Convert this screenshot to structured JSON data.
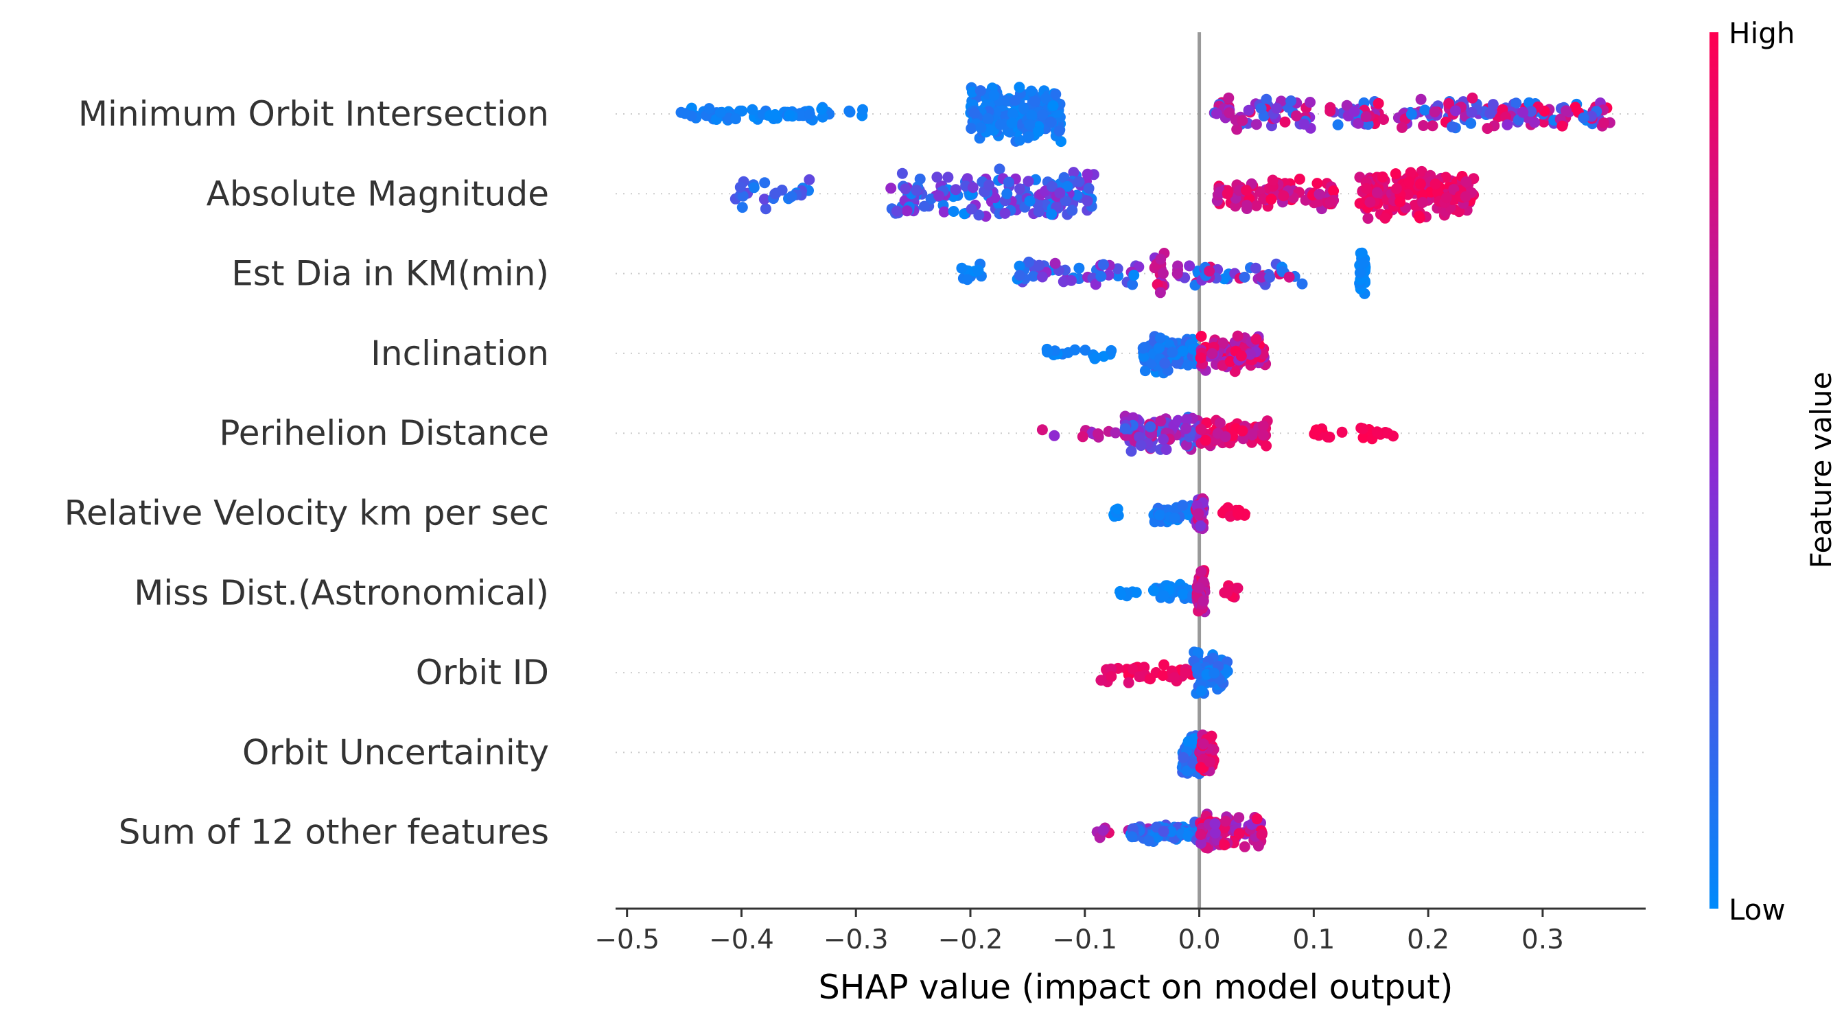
{
  "chart_data": {
    "type": "scatter",
    "subtype": "shap-beeswarm",
    "title": "",
    "xlabel": "SHAP value (impact on model output)",
    "ylabel": "",
    "xlim": [
      -0.51,
      0.39
    ],
    "x_ticks": [
      -0.5,
      -0.4,
      -0.3,
      -0.2,
      -0.1,
      0.0,
      0.1,
      0.2,
      0.3
    ],
    "x_tick_labels": [
      "−0.5",
      "−0.4",
      "−0.3",
      "−0.2",
      "−0.1",
      "0.0",
      "0.1",
      "0.2",
      "0.3"
    ],
    "zero_line": 0.0,
    "features": [
      {
        "name": "Minimum Orbit Intersection",
        "clusters": [
          {
            "x0": -0.46,
            "x1": -0.29,
            "n": 70,
            "spread": 0.25,
            "c0": 0.0,
            "c1": 0.1
          },
          {
            "x0": -0.2,
            "x1": -0.12,
            "n": 190,
            "spread": 1.0,
            "c0": 0.0,
            "c1": 0.15
          },
          {
            "x0": 0.01,
            "x1": 0.1,
            "n": 55,
            "spread": 0.55,
            "c0": 0.15,
            "c1": 0.95
          },
          {
            "x0": 0.11,
            "x1": 0.36,
            "n": 160,
            "spread": 0.55,
            "c0": 0.05,
            "c1": 1.0
          }
        ]
      },
      {
        "name": "Absolute Magnitude",
        "clusters": [
          {
            "x0": -0.41,
            "x1": -0.34,
            "n": 25,
            "spread": 0.55,
            "c0": 0.0,
            "c1": 0.4
          },
          {
            "x0": -0.27,
            "x1": -0.09,
            "n": 170,
            "spread": 0.85,
            "c0": 0.0,
            "c1": 0.55
          },
          {
            "x0": 0.015,
            "x1": 0.12,
            "n": 90,
            "spread": 0.55,
            "c0": 0.65,
            "c1": 1.0
          },
          {
            "x0": 0.14,
            "x1": 0.24,
            "n": 170,
            "spread": 0.9,
            "c0": 0.75,
            "c1": 1.0
          }
        ]
      },
      {
        "name": "Est Dia in KM(min)",
        "clusters": [
          {
            "x0": -0.21,
            "x1": -0.19,
            "n": 10,
            "spread": 0.35,
            "c0": 0.0,
            "c1": 0.1
          },
          {
            "x0": -0.16,
            "x1": -0.05,
            "n": 45,
            "spread": 0.45,
            "c0": 0.0,
            "c1": 0.6
          },
          {
            "x0": -0.04,
            "x1": -0.03,
            "n": 18,
            "spread": 0.7,
            "c0": 0.4,
            "c1": 0.95
          },
          {
            "x0": -0.02,
            "x1": 0.09,
            "n": 45,
            "spread": 0.45,
            "c0": 0.0,
            "c1": 0.9
          },
          {
            "x0": 0.14,
            "x1": 0.145,
            "n": 35,
            "spread": 0.95,
            "c0": 0.0,
            "c1": 0.05
          }
        ]
      },
      {
        "name": "Inclination",
        "clusters": [
          {
            "x0": -0.135,
            "x1": -0.075,
            "n": 15,
            "spread": 0.25,
            "c0": 0.0,
            "c1": 0.1
          },
          {
            "x0": -0.05,
            "x1": 0.0,
            "n": 110,
            "spread": 0.7,
            "c0": 0.0,
            "c1": 0.2
          },
          {
            "x0": 0.0,
            "x1": 0.06,
            "n": 95,
            "spread": 0.7,
            "c0": 0.5,
            "c1": 1.0
          }
        ]
      },
      {
        "name": "Perihelion Distance",
        "clusters": [
          {
            "x0": -0.14,
            "x1": -0.06,
            "n": 12,
            "spread": 0.15,
            "c0": 0.5,
            "c1": 0.85
          },
          {
            "x0": -0.065,
            "x1": 0.0,
            "n": 110,
            "spread": 0.65,
            "c0": 0.15,
            "c1": 0.8
          },
          {
            "x0": 0.0,
            "x1": 0.06,
            "n": 65,
            "spread": 0.45,
            "c0": 0.7,
            "c1": 1.0
          },
          {
            "x0": 0.1,
            "x1": 0.17,
            "n": 20,
            "spread": 0.2,
            "c0": 0.95,
            "c1": 1.0
          }
        ]
      },
      {
        "name": "Relative Velocity km per sec",
        "clusters": [
          {
            "x0": -0.075,
            "x1": -0.07,
            "n": 6,
            "spread": 0.2,
            "c0": 0.0,
            "c1": 0.05
          },
          {
            "x0": -0.04,
            "x1": -0.002,
            "n": 45,
            "spread": 0.35,
            "c0": 0.0,
            "c1": 0.15
          },
          {
            "x0": -0.003,
            "x1": 0.004,
            "n": 45,
            "spread": 0.65,
            "c0": 0.4,
            "c1": 0.95
          },
          {
            "x0": 0.02,
            "x1": 0.04,
            "n": 14,
            "spread": 0.3,
            "c0": 0.9,
            "c1": 1.0
          }
        ]
      },
      {
        "name": "Miss Dist.(Astronomical)",
        "clusters": [
          {
            "x0": -0.07,
            "x1": -0.05,
            "n": 6,
            "spread": 0.1,
            "c0": 0.0,
            "c1": 0.05
          },
          {
            "x0": -0.04,
            "x1": -0.002,
            "n": 40,
            "spread": 0.3,
            "c0": 0.0,
            "c1": 0.1
          },
          {
            "x0": -0.002,
            "x1": 0.005,
            "n": 50,
            "spread": 0.75,
            "c0": 0.6,
            "c1": 1.0
          },
          {
            "x0": 0.02,
            "x1": 0.035,
            "n": 12,
            "spread": 0.25,
            "c0": 0.85,
            "c1": 1.0
          }
        ]
      },
      {
        "name": "Orbit ID",
        "clusters": [
          {
            "x0": -0.09,
            "x1": -0.005,
            "n": 45,
            "spread": 0.35,
            "c0": 0.85,
            "c1": 1.0
          },
          {
            "x0": -0.005,
            "x1": 0.025,
            "n": 70,
            "spread": 0.75,
            "c0": 0.0,
            "c1": 0.2
          }
        ]
      },
      {
        "name": "Orbit Uncertainity",
        "clusters": [
          {
            "x0": -0.015,
            "x1": 0.0,
            "n": 70,
            "spread": 0.75,
            "c0": 0.0,
            "c1": 0.25
          },
          {
            "x0": 0.0,
            "x1": 0.013,
            "n": 55,
            "spread": 0.7,
            "c0": 0.7,
            "c1": 1.0
          }
        ]
      },
      {
        "name": "Sum of 12 other features",
        "clusters": [
          {
            "x0": -0.09,
            "x1": -0.04,
            "n": 14,
            "spread": 0.2,
            "c0": 0.35,
            "c1": 0.9
          },
          {
            "x0": -0.06,
            "x1": 0.0,
            "n": 80,
            "spread": 0.35,
            "c0": 0.0,
            "c1": 0.3
          },
          {
            "x0": 0.0,
            "x1": 0.055,
            "n": 80,
            "spread": 0.6,
            "c0": 0.5,
            "c1": 1.0
          }
        ]
      }
    ],
    "colorbar": {
      "label": "Feature value",
      "high_label": "High",
      "low_label": "Low",
      "low_color": "#008afb",
      "mid_color": "#8c2ad3",
      "high_color": "#ff0051"
    },
    "colors": {
      "zero_line": "#999999",
      "row_guide": "#cccccc",
      "axis": "#333333"
    }
  }
}
